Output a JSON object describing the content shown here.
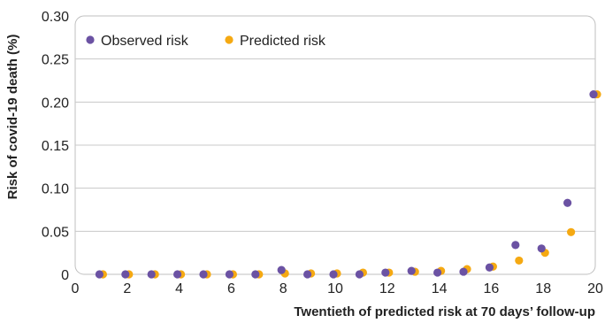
{
  "chart_data": {
    "type": "scatter",
    "title": "",
    "xlabel": "Twentieth of predicted risk at 70 days’ follow-up",
    "ylabel": "Risk of covid-19 death (%)",
    "xlim": [
      0,
      20
    ],
    "ylim": [
      0,
      0.3
    ],
    "x_ticks": [
      0,
      2,
      4,
      6,
      8,
      10,
      12,
      14,
      16,
      18,
      20
    ],
    "y_ticks": [
      0,
      0.05,
      0.1,
      0.15,
      0.2,
      0.25,
      0.3
    ],
    "x_tick_labels": [
      "0",
      "2",
      "4",
      "6",
      "8",
      "10",
      "12",
      "14",
      "16",
      "18",
      "20"
    ],
    "y_tick_labels": [
      "0",
      "0.05",
      "0.10",
      "0.15",
      "0.20",
      "0.25",
      "0.30"
    ],
    "grid": true,
    "legend_position": "top-left",
    "series": [
      {
        "name": "Observed risk",
        "color": "#6b52a3",
        "points": [
          [
            1,
            0
          ],
          [
            2,
            0
          ],
          [
            3,
            0
          ],
          [
            4,
            0
          ],
          [
            5,
            0
          ],
          [
            6,
            0
          ],
          [
            7,
            0
          ],
          [
            8,
            0.005
          ],
          [
            9,
            0
          ],
          [
            10,
            0
          ],
          [
            11,
            0
          ],
          [
            12,
            0.002
          ],
          [
            13,
            0.004
          ],
          [
            14,
            0.002
          ],
          [
            15,
            0.003
          ],
          [
            16,
            0.008
          ],
          [
            17,
            0.034
          ],
          [
            18,
            0.03
          ],
          [
            19,
            0.083
          ],
          [
            20,
            0.209
          ]
        ]
      },
      {
        "name": "Predicted risk",
        "color": "#f5a912",
        "points": [
          [
            1,
            0
          ],
          [
            2,
            0
          ],
          [
            3,
            0
          ],
          [
            4,
            0
          ],
          [
            5,
            0
          ],
          [
            6,
            0
          ],
          [
            7,
            0
          ],
          [
            8,
            0.001
          ],
          [
            9,
            0.001
          ],
          [
            10,
            0.001
          ],
          [
            11,
            0.002
          ],
          [
            12,
            0.002
          ],
          [
            13,
            0.003
          ],
          [
            14,
            0.004
          ],
          [
            15,
            0.006
          ],
          [
            16,
            0.009
          ],
          [
            17,
            0.016
          ],
          [
            18,
            0.025
          ],
          [
            19,
            0.049
          ],
          [
            20,
            0.209
          ]
        ]
      }
    ]
  }
}
